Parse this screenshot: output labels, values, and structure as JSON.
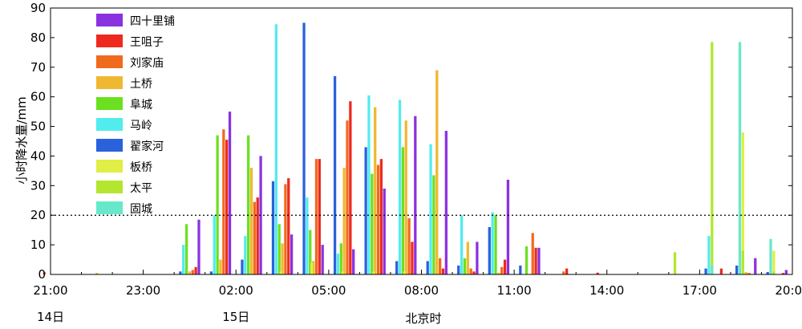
{
  "chart_data": {
    "type": "bar",
    "ylabel": "小时降水量/mm",
    "xlabel": "北京时",
    "ylim": [
      0,
      90
    ],
    "yticks": [
      0,
      10,
      20,
      30,
      40,
      50,
      60,
      70,
      80,
      90
    ],
    "xlim": [
      0,
      23
    ],
    "xticks": [
      {
        "x": 0,
        "label": "21:00"
      },
      {
        "x": 3,
        "label": "23:00"
      },
      {
        "x": 6,
        "label": "02:00"
      },
      {
        "x": 9,
        "label": "05:00"
      },
      {
        "x": 12,
        "label": "08:00"
      },
      {
        "x": 15,
        "label": "11:00"
      },
      {
        "x": 18,
        "label": "14:00"
      },
      {
        "x": 21,
        "label": "17:00"
      },
      {
        "x": 24,
        "label": "20:00"
      }
    ],
    "date_labels": [
      {
        "x": 0,
        "label": "14日"
      },
      {
        "x": 6,
        "label": "15日"
      }
    ],
    "threshold": {
      "value": 20,
      "style": "dotted"
    },
    "legend_position": "top-left",
    "series": [
      {
        "name": "四十里铺",
        "color": "#8a32e0",
        "points": [
          [
            4.3,
            18.5
          ],
          [
            5.3,
            55
          ],
          [
            6.3,
            40
          ],
          [
            7.3,
            13.5
          ],
          [
            8.3,
            10
          ],
          [
            9.3,
            8.5
          ],
          [
            10.3,
            29
          ],
          [
            11.3,
            53.5
          ],
          [
            12.3,
            48.5
          ],
          [
            13.3,
            11
          ],
          [
            14.3,
            32
          ],
          [
            15.3,
            9
          ],
          [
            22.3,
            5.5
          ],
          [
            23.3,
            1.5
          ]
        ]
      },
      {
        "name": "王咀子",
        "color": "#ee2a1e",
        "points": [
          [
            -0.7,
            0.7
          ],
          [
            4.2,
            2.5
          ],
          [
            5.2,
            45.5
          ],
          [
            6.2,
            26
          ],
          [
            7.2,
            32.5
          ],
          [
            8.2,
            39
          ],
          [
            9.2,
            58.5
          ],
          [
            10.2,
            39
          ],
          [
            11.2,
            11
          ],
          [
            12.2,
            2
          ],
          [
            13.2,
            1
          ],
          [
            14.2,
            5
          ],
          [
            15.2,
            9
          ],
          [
            16.2,
            2
          ],
          [
            17.2,
            0.6
          ],
          [
            21.2,
            2
          ],
          [
            23.2,
            0.5
          ]
        ]
      },
      {
        "name": "刘家庙",
        "color": "#f06a1e",
        "points": [
          [
            4.1,
            1.5
          ],
          [
            5.1,
            49
          ],
          [
            6.1,
            24.5
          ],
          [
            7.1,
            30.5
          ],
          [
            8.1,
            39
          ],
          [
            9.1,
            52
          ],
          [
            10.1,
            37
          ],
          [
            11.1,
            19
          ],
          [
            12.1,
            5.5
          ],
          [
            13.1,
            2
          ],
          [
            14.1,
            2.5
          ],
          [
            15.1,
            14
          ],
          [
            16.1,
            1
          ],
          [
            22.1,
            0.5
          ]
        ]
      },
      {
        "name": "土桥",
        "color": "#f0b830",
        "points": [
          [
            1.0,
            0.5
          ],
          [
            4.0,
            1
          ],
          [
            5.0,
            5
          ],
          [
            6.0,
            36
          ],
          [
            7.0,
            10.5
          ],
          [
            8.0,
            4.5
          ],
          [
            9.0,
            36
          ],
          [
            10.0,
            56.5
          ],
          [
            11.0,
            52
          ],
          [
            12.0,
            69
          ],
          [
            13.0,
            11
          ],
          [
            14.0,
            0.6
          ],
          [
            22.0,
            0.8
          ]
        ]
      },
      {
        "name": "阜城",
        "color": "#6ce020",
        "points": [
          [
            3.9,
            17
          ],
          [
            4.9,
            47
          ],
          [
            5.9,
            47
          ],
          [
            6.9,
            17
          ],
          [
            7.9,
            15
          ],
          [
            8.9,
            10.5
          ],
          [
            9.9,
            34
          ],
          [
            10.9,
            43
          ],
          [
            11.9,
            33.5
          ],
          [
            12.9,
            5.5
          ],
          [
            13.9,
            20
          ],
          [
            14.9,
            9.5
          ],
          [
            21.9,
            1
          ]
        ]
      },
      {
        "name": "马岭",
        "color": "#52ecee",
        "points": [
          [
            3.8,
            10
          ],
          [
            4.8,
            20
          ],
          [
            5.8,
            13
          ],
          [
            6.8,
            84.5
          ],
          [
            7.8,
            26
          ],
          [
            8.8,
            7
          ],
          [
            9.8,
            60.5
          ],
          [
            10.8,
            59
          ],
          [
            11.8,
            44
          ],
          [
            12.8,
            20
          ],
          [
            13.8,
            21
          ],
          [
            20.8,
            13
          ]
        ]
      },
      {
        "name": "翟家河",
        "color": "#2a62dc",
        "points": [
          [
            3.7,
            1
          ],
          [
            4.7,
            1
          ],
          [
            5.7,
            5
          ],
          [
            6.7,
            31.5
          ],
          [
            7.7,
            85
          ],
          [
            8.7,
            67
          ],
          [
            9.7,
            43
          ],
          [
            10.7,
            4.5
          ],
          [
            11.7,
            4.5
          ],
          [
            12.7,
            3
          ],
          [
            13.7,
            16
          ],
          [
            14.7,
            3
          ],
          [
            20.7,
            2
          ],
          [
            21.7,
            3
          ],
          [
            22.7,
            0.8
          ]
        ]
      },
      {
        "name": "板桥",
        "color": "#e0ee46",
        "points": [
          [
            6.95,
            1
          ],
          [
            7.95,
            4
          ],
          [
            8.95,
            1
          ],
          [
            9.95,
            1
          ],
          [
            10.95,
            1
          ],
          [
            21.9,
            48
          ],
          [
            22.9,
            8
          ]
        ]
      },
      {
        "name": "太平",
        "color": "#b4e630",
        "points": [
          [
            19.7,
            7.5
          ],
          [
            20.9,
            78.5
          ],
          [
            21.9,
            8
          ],
          [
            22.9,
            1
          ]
        ]
      },
      {
        "name": "固城",
        "color": "#66e8ca",
        "points": [
          [
            20.9,
            3
          ],
          [
            21.8,
            78.5
          ],
          [
            22.8,
            12
          ],
          [
            23.9,
            6.5
          ]
        ]
      }
    ]
  }
}
